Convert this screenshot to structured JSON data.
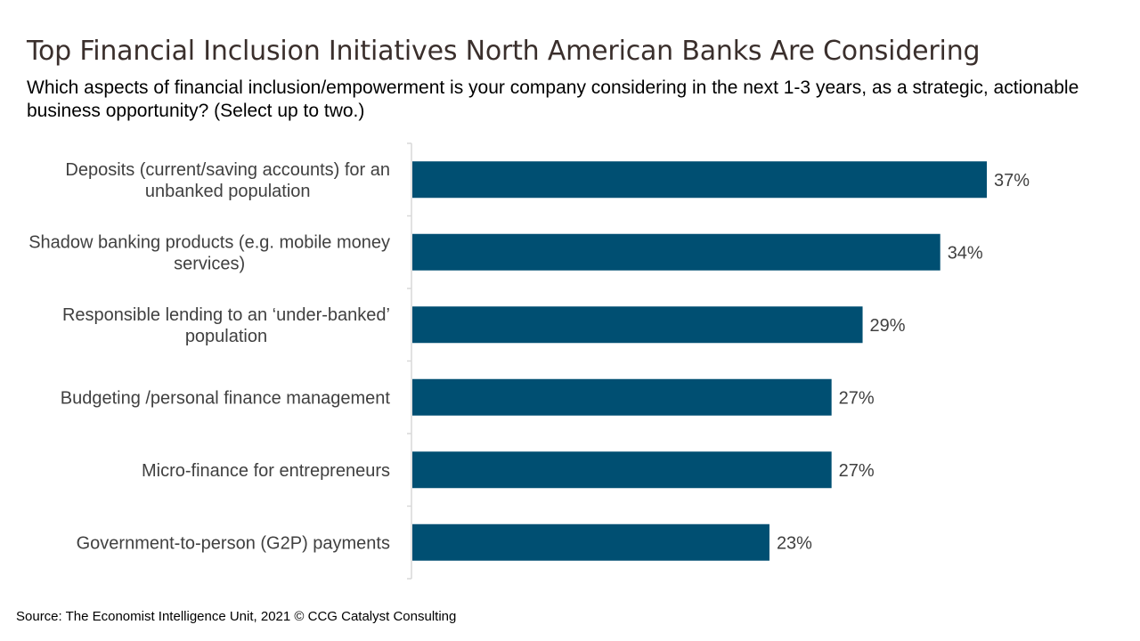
{
  "page": {
    "title": "Top Financial Inclusion Initiatives North American Banks Are Considering",
    "subtitle": "Which aspects of financial inclusion/empowerment is your company considering in the next 1-3 years, as a strategic, actionable business opportunity? (Select up to two.)",
    "source": "Source: The Economist Intelligence Unit, 2021 © CCG Catalyst Consulting"
  },
  "chart_data": {
    "type": "bar",
    "orientation": "horizontal",
    "categories": [
      [
        "Deposits (current/saving accounts) for an",
        "unbanked population"
      ],
      [
        "Shadow banking products (e.g. mobile money",
        "services)"
      ],
      [
        "Responsible lending to an ‘under-banked’",
        "population"
      ],
      [
        "Budgeting /personal finance management"
      ],
      [
        "Micro-finance for entrepreneurs"
      ],
      [
        "Government-to-person (G2P) payments"
      ]
    ],
    "values": [
      37,
      34,
      29,
      27,
      27,
      23
    ],
    "value_labels": [
      "37%",
      "34%",
      "29%",
      "27%",
      "27%",
      "23%"
    ],
    "unit": "%",
    "xlim": [
      0,
      37
    ],
    "grid": false,
    "legend": "none",
    "bar_color": "#004f72",
    "axis_color": "#d9d9d9",
    "label_color": "#404040"
  }
}
